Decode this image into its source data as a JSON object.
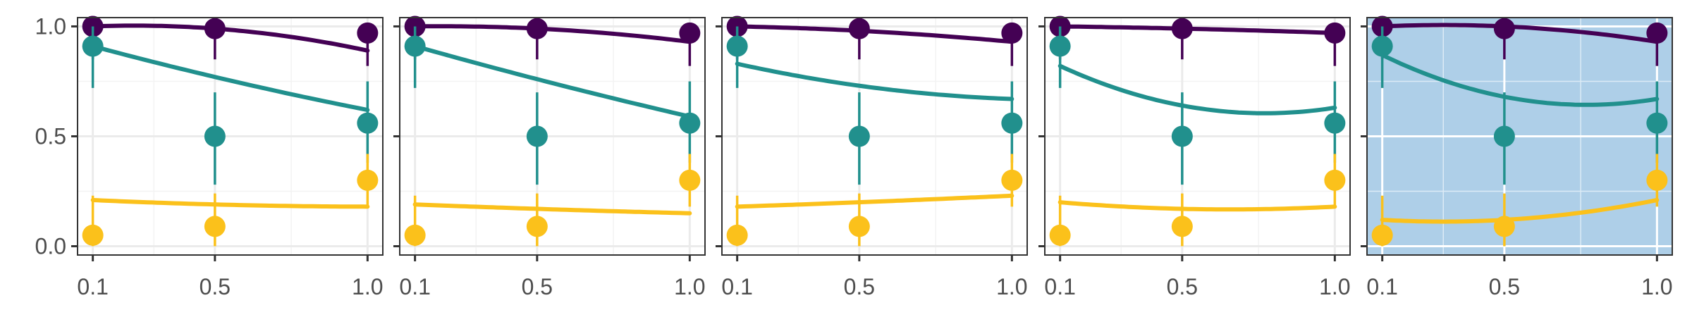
{
  "chart_data": {
    "type": "scatter",
    "x": [
      0.1,
      0.5,
      1.0
    ],
    "xlim": [
      0.05,
      1.05
    ],
    "ylim": [
      -0.04,
      1.04
    ],
    "yticks": [
      0.0,
      0.5,
      1.0
    ],
    "ytick_labels": [
      "0.0",
      "0.5",
      "1.0"
    ],
    "xticks": [
      0.1,
      0.5,
      1.0
    ],
    "xtick_labels": [
      "0.1",
      "0.5",
      "1.0"
    ],
    "grid": true,
    "series_colors": [
      "#440154",
      "#21908d",
      "#fbc11b"
    ],
    "points": [
      {
        "color": "#440154",
        "y": [
          1.0,
          0.99,
          0.97
        ],
        "err": [
          [
            0.85,
            1.0
          ],
          [
            0.85,
            1.0
          ],
          [
            0.82,
            1.0
          ]
        ]
      },
      {
        "color": "#21908d",
        "y": [
          0.91,
          0.5,
          0.56
        ],
        "err": [
          [
            0.72,
            1.0
          ],
          [
            0.28,
            0.7
          ],
          [
            0.38,
            0.75
          ]
        ]
      },
      {
        "color": "#fbc11b",
        "y": [
          0.05,
          0.09,
          0.3
        ],
        "err": [
          [
            0.0,
            0.23
          ],
          [
            0.0,
            0.24
          ],
          [
            0.18,
            0.42
          ]
        ]
      }
    ],
    "panels": [
      {
        "highlight": false,
        "fits": [
          {
            "color": "#440154",
            "y": [
              1.0,
              0.99,
              0.89
            ]
          },
          {
            "color": "#21908d",
            "y": [
              0.91,
              0.77,
              0.62
            ]
          },
          {
            "color": "#fbc11b",
            "y": [
              0.21,
              0.19,
              0.18
            ]
          }
        ]
      },
      {
        "highlight": false,
        "fits": [
          {
            "color": "#440154",
            "y": [
              1.0,
              0.99,
              0.93
            ]
          },
          {
            "color": "#21908d",
            "y": [
              0.91,
              0.76,
              0.59
            ]
          },
          {
            "color": "#fbc11b",
            "y": [
              0.19,
              0.17,
              0.15
            ]
          }
        ]
      },
      {
        "highlight": false,
        "fits": [
          {
            "color": "#440154",
            "y": [
              1.0,
              0.98,
              0.93
            ]
          },
          {
            "color": "#21908d",
            "y": [
              0.83,
              0.73,
              0.67
            ]
          },
          {
            "color": "#fbc11b",
            "y": [
              0.18,
              0.2,
              0.23
            ]
          }
        ]
      },
      {
        "highlight": false,
        "fits": [
          {
            "color": "#440154",
            "y": [
              1.0,
              0.99,
              0.97
            ]
          },
          {
            "color": "#21908d",
            "y": [
              0.82,
              0.64,
              0.63
            ]
          },
          {
            "color": "#fbc11b",
            "y": [
              0.2,
              0.17,
              0.18
            ]
          }
        ]
      },
      {
        "highlight": true,
        "highlight_color": "#aecfe8",
        "fits": [
          {
            "color": "#440154",
            "y": [
              1.0,
              1.0,
              0.93
            ]
          },
          {
            "color": "#21908d",
            "y": [
              0.87,
              0.68,
              0.67
            ]
          },
          {
            "color": "#fbc11b",
            "y": [
              0.12,
              0.12,
              0.21
            ]
          }
        ]
      }
    ]
  }
}
